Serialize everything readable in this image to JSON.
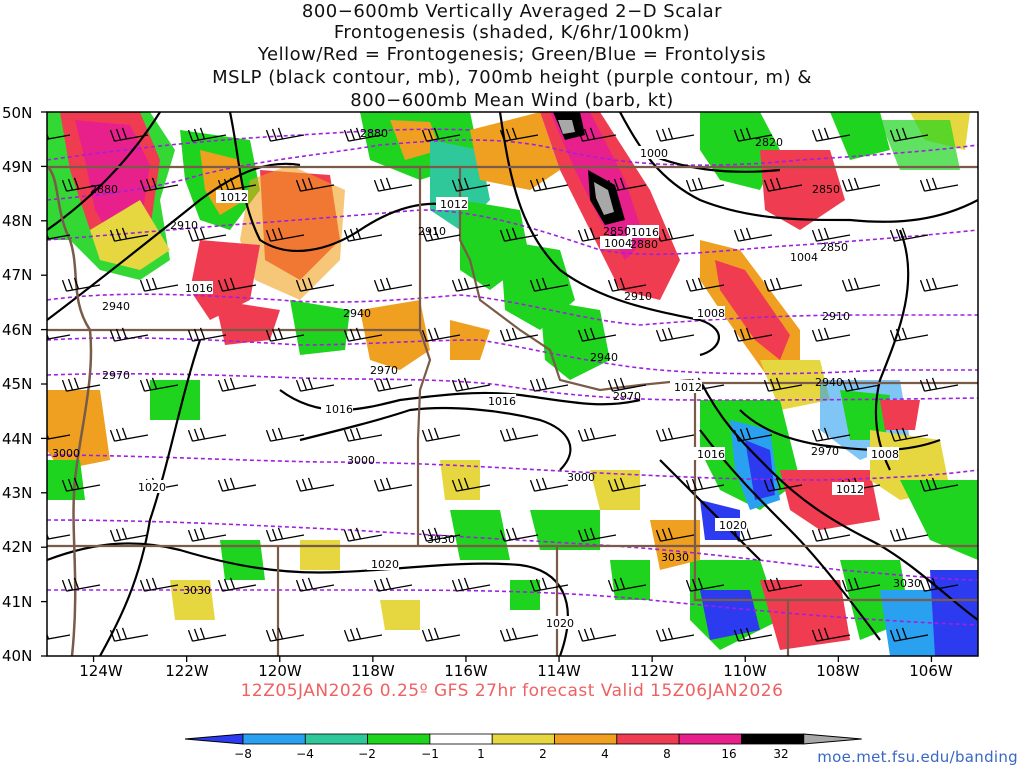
{
  "title": {
    "lines": [
      "800−600mb Vertically Averaged 2−D Scalar",
      "Frontogenesis (shaded, K/6hr/100km)",
      "Yellow/Red = Frontogenesis;  Green/Blue = Frontolysis",
      "MSLP (black contour, mb), 700mb height (purple contour, m) &",
      "800−600mb Mean Wind (barb, kt)"
    ]
  },
  "map": {
    "lat_labels": [
      "50N",
      "49N",
      "48N",
      "47N",
      "46N",
      "45N",
      "44N",
      "43N",
      "42N",
      "41N",
      "40N"
    ],
    "lon_labels": [
      "124W",
      "122W",
      "120W",
      "118W",
      "116W",
      "114W",
      "112W",
      "110W",
      "108W",
      "106W"
    ],
    "lat_range": [
      40,
      50
    ],
    "lon_range": [
      -125,
      -105
    ],
    "colors": {
      "frontolysis_strong": "#2d3bf0",
      "frontolysis_mod": "#2aa0f0",
      "frontolysis_weak": "#2fc89a",
      "frontolysis_light": "#1ed41e",
      "frontogenesis_light": "#e6d640",
      "frontogenesis_weak": "#f0a020",
      "frontogenesis_mod": "#f06020",
      "frontogenesis_strong": "#f03c50",
      "frontogenesis_high": "#e8208c",
      "frontogenesis_extreme": "#000000",
      "mslp_contour": "#000000",
      "height_contour": "#a020e0",
      "borders": "#7a5a48"
    },
    "mslp_labels": [
      "1000",
      "1012",
      "1012",
      "1016",
      "1008",
      "1004",
      "1004",
      "1012",
      "1016",
      "1016",
      "1016",
      "1008",
      "1012",
      "1020",
      "1020",
      "1020",
      "1020",
      "1016"
    ],
    "height_labels": [
      "2880",
      "2820",
      "2880",
      "2850",
      "2910",
      "2850",
      "2880",
      "2850",
      "2910",
      "2940",
      "2910",
      "2910",
      "2940",
      "2940",
      "2970",
      "2970",
      "2970",
      "3000",
      "3000",
      "3000",
      "3030",
      "3030",
      "3030",
      "3030",
      "2940",
      "2970"
    ],
    "forecast_label": "12Z05JAN2026 0.25º GFS 27hr forecast Valid 15Z06JAN2026"
  },
  "colorbar": {
    "labels": [
      "−8",
      "−4",
      "−2",
      "−1",
      "1",
      "2",
      "4",
      "8",
      "16",
      "32"
    ],
    "colors": [
      "#2d3bf0",
      "#2aa0f0",
      "#2fc89a",
      "#1ed41e",
      "#ffffff",
      "#e6d640",
      "#f0a020",
      "#f03c50",
      "#e8208c",
      "#000000",
      "#a8a8a8"
    ]
  },
  "credit": "moe.met.fsu.edu/banding"
}
